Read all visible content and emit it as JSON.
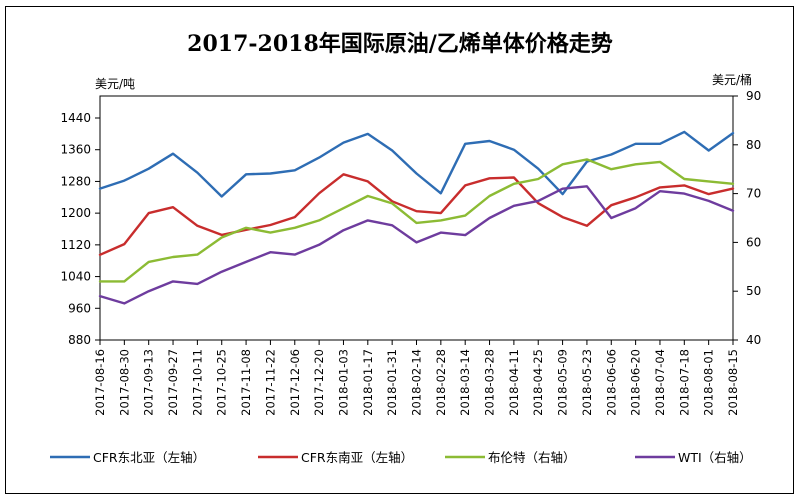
{
  "chart_data": {
    "type": "line",
    "title": "2017-2018年国际原油/乙烯单体价格走势",
    "left_axis": {
      "unit": "美元/吨",
      "min": 880,
      "max": 1440,
      "ticks": [
        880,
        960,
        1040,
        1120,
        1200,
        1280,
        1360,
        1440
      ]
    },
    "right_axis": {
      "unit": "美元/桶",
      "min": 40,
      "max": 90,
      "ticks": [
        40,
        50,
        60,
        70,
        80,
        90
      ]
    },
    "x_categories": [
      "2017-08-16",
      "2017-08-30",
      "2017-09-13",
      "2017-09-27",
      "2017-10-11",
      "2017-10-25",
      "2017-11-08",
      "2017-11-22",
      "2017-12-06",
      "2017-12-20",
      "2018-01-03",
      "2018-01-17",
      "2018-01-31",
      "2018-02-14",
      "2018-02-28",
      "2018-03-14",
      "2018-03-28",
      "2018-04-11",
      "2018-04-25",
      "2018-05-09",
      "2018-05-23",
      "2018-06-06",
      "2018-06-20",
      "2018-07-04",
      "2018-07-18",
      "2018-08-01",
      "2018-08-15"
    ],
    "grid": false,
    "legend_position": "bottom",
    "series": [
      {
        "name": "CFR东北亚（左轴）",
        "axis": "left",
        "color": "#2e6db4",
        "values": [
          1262,
          1282,
          1312,
          1350,
          1302,
          1242,
          1298,
          1300,
          1308,
          1340,
          1378,
          1400,
          1358,
          1300,
          1250,
          1375,
          1382,
          1360,
          1312,
          1248,
          1330,
          1348,
          1375,
          1375,
          1405,
          1358,
          1402
        ]
      },
      {
        "name": "CFR东南亚（左轴）",
        "axis": "left",
        "color": "#c82d2d",
        "values": [
          1095,
          1122,
          1200,
          1215,
          1168,
          1145,
          1158,
          1170,
          1190,
          1250,
          1298,
          1280,
          1230,
          1205,
          1200,
          1270,
          1288,
          1290,
          1225,
          1190,
          1168,
          1220,
          1240,
          1265,
          1270,
          1248,
          1262
        ]
      },
      {
        "name": "布伦特（右轴）",
        "axis": "right",
        "color": "#8cbb34",
        "values": [
          52,
          52,
          56,
          57,
          57.5,
          61,
          63,
          62,
          63,
          64.5,
          67,
          69.5,
          68,
          64,
          64.5,
          65.5,
          69.5,
          72,
          73,
          76,
          77,
          75,
          76,
          76.5,
          73,
          72.5,
          72
        ]
      },
      {
        "name": "WTI（右轴）",
        "axis": "right",
        "color": "#6e3c9e",
        "values": [
          49,
          47.5,
          50,
          52,
          51.5,
          54,
          56,
          58,
          57.5,
          59.5,
          62.5,
          64.5,
          63.5,
          60,
          62,
          61.5,
          65,
          67.5,
          68.5,
          71,
          71.5,
          65,
          67,
          70.5,
          70,
          68.5,
          66.5
        ]
      }
    ]
  }
}
